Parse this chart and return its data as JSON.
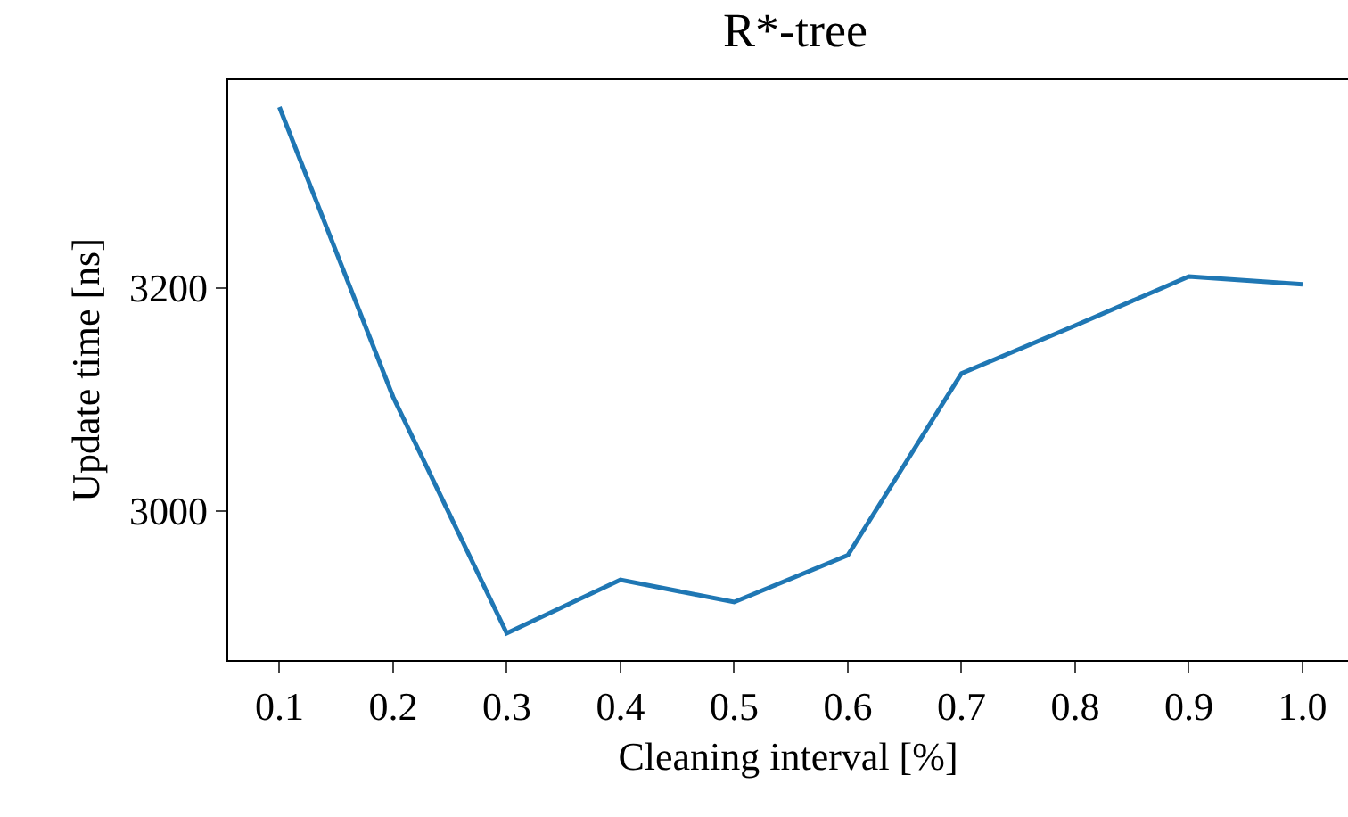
{
  "chart_data": {
    "type": "line",
    "title": "R*-tree",
    "xlabel": "Cleaning interval [%]",
    "ylabel": "Update time [ns]",
    "x": [
      0.1,
      0.2,
      0.3,
      0.4,
      0.5,
      0.6,
      0.7,
      0.8,
      0.9,
      1.0
    ],
    "series": [
      {
        "color": "#1f77b4",
        "values": [
          3362,
          3102,
          2890,
          2938,
          2918,
          2960,
          3123,
          3166,
          3210,
          3203
        ]
      }
    ],
    "xlim": [
      0.055,
      1.04
    ],
    "xticks": [
      {
        "value": 0.1,
        "label": "0.1"
      },
      {
        "value": 0.2,
        "label": "0.2"
      },
      {
        "value": 0.3,
        "label": "0.3"
      },
      {
        "value": 0.4,
        "label": "0.4"
      },
      {
        "value": 0.5,
        "label": "0.5"
      },
      {
        "value": 0.6,
        "label": "0.6"
      },
      {
        "value": 0.7,
        "label": "0.7"
      },
      {
        "value": 0.8,
        "label": "0.8"
      },
      {
        "value": 0.9,
        "label": "0.9"
      },
      {
        "value": 1.0,
        "label": "1.0"
      }
    ],
    "ylim": [
      2866,
      3386
    ],
    "yticks": [
      3000,
      3200
    ],
    "grid": false,
    "marker": "none",
    "line_style": "solid"
  }
}
